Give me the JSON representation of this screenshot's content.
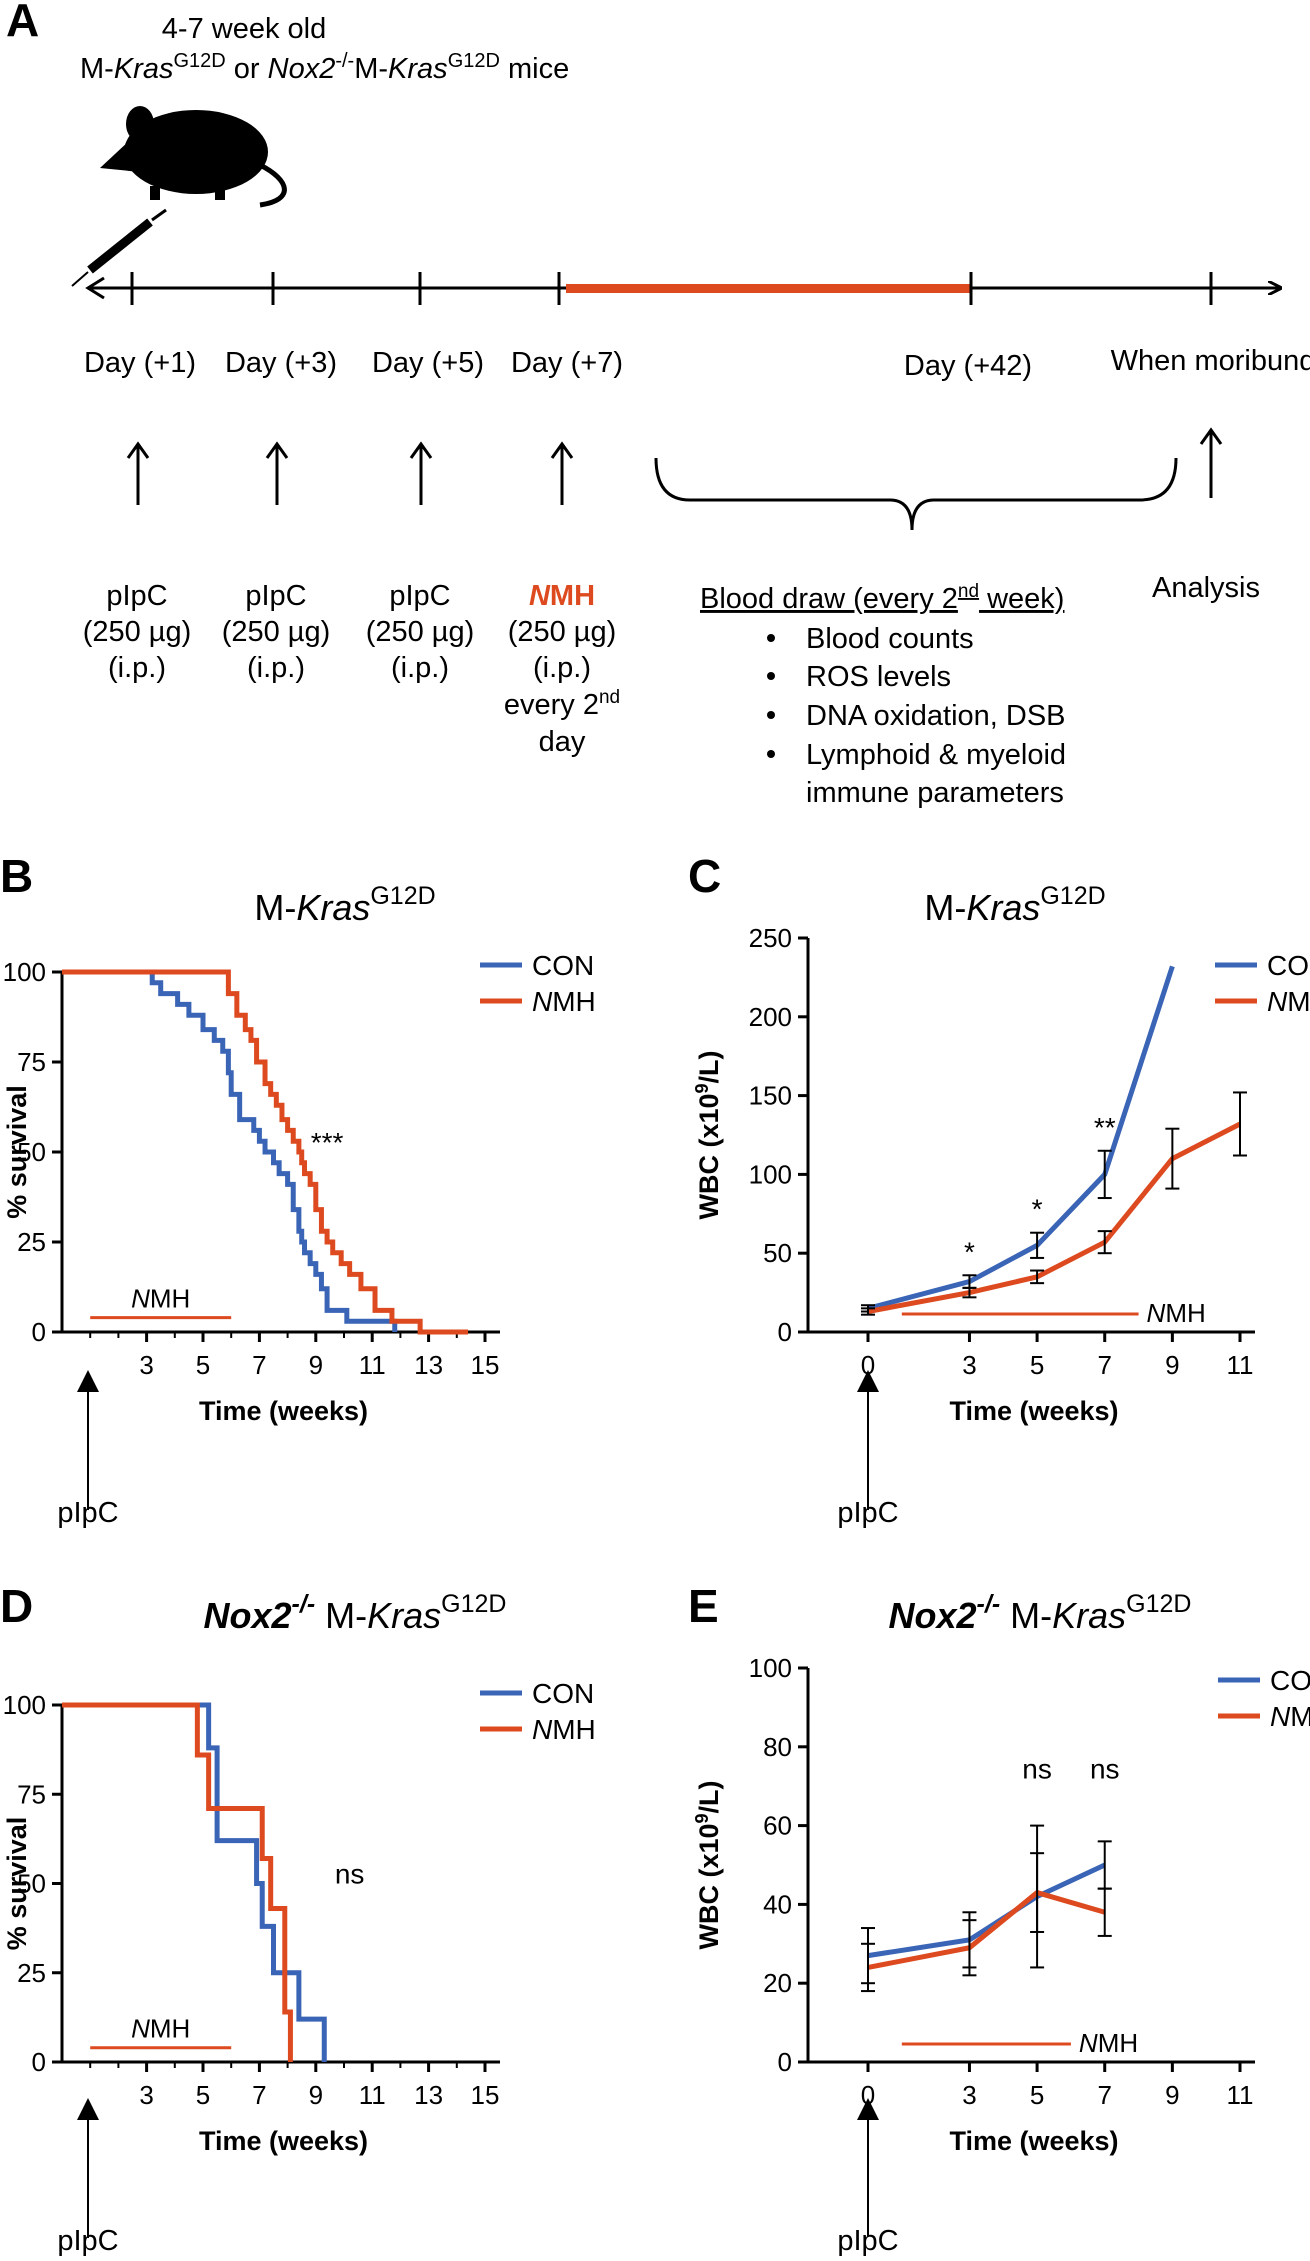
{
  "panel_a": {
    "letter": "A",
    "mice_line1": "4-7 week old",
    "mice_line2": {
      "a": "M-",
      "b": "Kras",
      "c": "G12D",
      "d": " or ",
      "e": "Nox2",
      "f": "-/-",
      "g": "M-",
      "h": "Kras",
      "i": "G12D",
      "j": "  mice"
    },
    "timeline": [
      {
        "day": "Day (+1)",
        "lines": [
          "pIpC",
          "(250 µg)",
          "(i.p.)"
        ]
      },
      {
        "day": "Day (+3)",
        "lines": [
          "pIpC",
          "(250 µg)",
          "(i.p.)"
        ]
      },
      {
        "day": "Day (+5)",
        "lines": [
          "pIpC",
          "(250 µg)",
          "(i.p.)"
        ]
      },
      {
        "day": "Day (+7)",
        "nmh_italic": "N",
        "nmh_rest": "MH",
        "lines": [
          "(250 µg)",
          "(i.p.)",
          "every 2",
          "day"
        ],
        "sup": "nd"
      },
      {
        "day": "Day (+42)"
      },
      {
        "day": "When moribund",
        "lines": [
          "Analysis"
        ]
      }
    ],
    "blood": {
      "heading": "Blood draw (every 2",
      "heading_sup": "nd",
      "heading_end": " week)",
      "items": [
        "Blood counts",
        "ROS levels",
        "DNA oxidation, DSB",
        "Lymphoid & myeloid",
        "immune parameters"
      ]
    }
  },
  "colors": {
    "con": "#3a64b5",
    "nmh": "#dd4a1f",
    "black": "#000000"
  },
  "legend": {
    "con": "CON",
    "nmh_italic": "N",
    "nmh_rest": "MH"
  },
  "nmh_bar_label": {
    "italic": "N",
    "rest": "MH"
  },
  "pipc_label": "pIpC",
  "chart_data": [
    {
      "id": "B",
      "type": "line",
      "subtype": "kaplan-meier",
      "title": {
        "pre": "M-",
        "italic": "Kras",
        "sup": "G12D"
      },
      "xlabel": "Time (weeks)",
      "ylabel": "% survival",
      "xlim": [
        0,
        15
      ],
      "ylim": [
        0,
        100
      ],
      "xticks": [
        "3",
        "5",
        "7",
        "9",
        "11",
        "13",
        "15"
      ],
      "yticks": [
        "0",
        "25",
        "50",
        "75",
        "100"
      ],
      "significance": "***",
      "nmh_bar_weeks": [
        1,
        6
      ],
      "series": [
        {
          "name": "CON",
          "x": [
            0,
            3.2,
            3.5,
            4.1,
            4.5,
            5.0,
            5.4,
            5.7,
            5.9,
            6.0,
            6.3,
            6.8,
            7.0,
            7.2,
            7.5,
            7.7,
            8.0,
            8.2,
            8.4,
            8.5,
            8.6,
            8.8,
            9.0,
            9.2,
            9.4,
            10.1,
            10.8,
            11.8
          ],
          "y": [
            100,
            97,
            94,
            91,
            88,
            84,
            81,
            78,
            72,
            66,
            59,
            56,
            53,
            50,
            47,
            44,
            41,
            34,
            28,
            25,
            22,
            19,
            16,
            12,
            6,
            3,
            3,
            0
          ]
        },
        {
          "name": "NMH",
          "x": [
            0,
            5.9,
            6.2,
            6.5,
            6.7,
            6.9,
            7.2,
            7.4,
            7.6,
            7.8,
            8.0,
            8.2,
            8.4,
            8.5,
            8.6,
            8.8,
            9.0,
            9.2,
            9.4,
            9.6,
            9.9,
            10.2,
            10.6,
            11.1,
            11.7,
            12.7,
            13.6,
            14.4
          ],
          "y": [
            100,
            94,
            88,
            84,
            81,
            75,
            69,
            66,
            63,
            59,
            56,
            53,
            50,
            47,
            44,
            41,
            34,
            28,
            25,
            22,
            19,
            16,
            12,
            6,
            3,
            0,
            0,
            0
          ]
        }
      ]
    },
    {
      "id": "C",
      "type": "line",
      "title": {
        "pre": "M-",
        "italic": "Kras",
        "sup": "G12D"
      },
      "xlabel": "Time (weeks)",
      "ylabel": "WBC (x10",
      "ylabel_sup": "9",
      "ylabel_end": "/L)",
      "xlim": [
        -2,
        12
      ],
      "ylim": [
        0,
        250
      ],
      "xticks": [
        "0",
        "3",
        "5",
        "7",
        "9",
        "11"
      ],
      "yticks": [
        "0",
        "50",
        "100",
        "150",
        "200",
        "250"
      ],
      "nmh_bar_weeks": [
        1,
        8
      ],
      "annotations": [
        {
          "x": 3,
          "text": "*"
        },
        {
          "x": 5,
          "text": "*"
        },
        {
          "x": 7,
          "text": "**"
        }
      ],
      "series": [
        {
          "name": "CON",
          "x": [
            0,
            3,
            5,
            7,
            9
          ],
          "y": [
            15,
            32,
            55,
            100,
            232
          ],
          "err": [
            2,
            4,
            8,
            15,
            0
          ]
        },
        {
          "name": "NMH",
          "x": [
            0,
            3,
            5,
            7,
            9,
            11
          ],
          "y": [
            13,
            25,
            35,
            57,
            110,
            132
          ],
          "err": [
            2,
            3,
            4,
            7,
            19,
            20
          ]
        }
      ]
    },
    {
      "id": "D",
      "type": "line",
      "subtype": "kaplan-meier",
      "title": {
        "pre_bold": "Nox2",
        "sup1": "-/-",
        "mid": " M-",
        "italic": "Kras",
        "sup": "G12D"
      },
      "xlabel": "Time (weeks)",
      "ylabel": "% survival",
      "xlim": [
        0,
        15
      ],
      "ylim": [
        0,
        100
      ],
      "xticks": [
        "3",
        "5",
        "7",
        "9",
        "11",
        "13",
        "15"
      ],
      "yticks": [
        "0",
        "25",
        "50",
        "75",
        "100"
      ],
      "significance": "ns",
      "nmh_bar_weeks": [
        1,
        6
      ],
      "series": [
        {
          "name": "CON",
          "x": [
            0,
            5.0,
            5.2,
            5.5,
            6.1,
            6.9,
            7.1,
            7.5,
            7.9,
            8.4,
            9.3
          ],
          "y": [
            100,
            100,
            88,
            62,
            62,
            50,
            38,
            25,
            25,
            12,
            0
          ]
        },
        {
          "name": "NMH",
          "x": [
            0,
            4.8,
            5.2,
            6.0,
            6.0,
            7.1,
            7.4,
            7.6,
            7.9,
            8.1
          ],
          "y": [
            100,
            86,
            71,
            71,
            71,
            57,
            43,
            43,
            14,
            0
          ]
        }
      ]
    },
    {
      "id": "E",
      "type": "line",
      "title": {
        "pre_bold": "Nox2",
        "sup1": "-/-",
        "mid": " M-",
        "italic": "Kras",
        "sup": "G12D"
      },
      "xlabel": "Time (weeks)",
      "ylabel": "WBC (x10",
      "ylabel_sup": "9",
      "ylabel_end": "/L)",
      "xlim": [
        -2,
        12
      ],
      "ylim": [
        0,
        100
      ],
      "xticks": [
        "0",
        "3",
        "5",
        "7",
        "9",
        "11"
      ],
      "yticks": [
        "0",
        "20",
        "40",
        "60",
        "80",
        "100"
      ],
      "nmh_bar_weeks": [
        1,
        6
      ],
      "annotations": [
        {
          "x": 5,
          "text": "ns"
        },
        {
          "x": 7,
          "text": "ns"
        }
      ],
      "series": [
        {
          "name": "CON",
          "x": [
            0,
            3,
            5,
            7
          ],
          "y": [
            27,
            31,
            42,
            50
          ],
          "err": [
            7,
            7,
            18,
            6
          ]
        },
        {
          "name": "NMH",
          "x": [
            0,
            3,
            5,
            7
          ],
          "y": [
            24,
            29,
            43,
            38
          ],
          "err": [
            6,
            7,
            10,
            6
          ]
        }
      ]
    }
  ]
}
